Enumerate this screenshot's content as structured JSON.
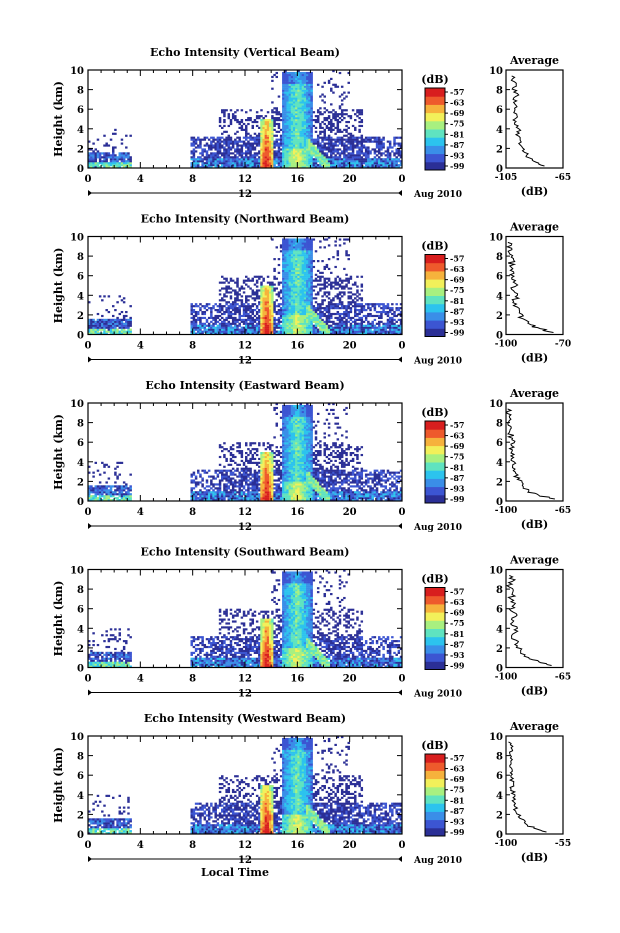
{
  "figure": {
    "xlabel": "Local Time",
    "date_label": "Aug 2010",
    "colorbar_unit": "(dB)",
    "avg_title": "Average",
    "avg_xlabel": "(dB)"
  },
  "colormap": [
    "#2b2f96",
    "#3c55d2",
    "#3a8ee8",
    "#2cc3ee",
    "#5fe3c0",
    "#a8f080",
    "#f2f05a",
    "#f6b23c",
    "#ee5a2c",
    "#d81e1e"
  ],
  "chart_data": [
    {
      "type": "heatmap",
      "title": "Echo Intensity (Vertical Beam)",
      "ylabel": "Height (km)",
      "xlim": [
        0,
        24
      ],
      "ylim": [
        0,
        10
      ],
      "x_ticks": [
        "0",
        "4",
        "8",
        "12",
        "16",
        "20",
        "0"
      ],
      "x_tick_values": [
        0,
        4,
        8,
        12,
        16,
        20,
        24
      ],
      "y_ticks": [
        0,
        2,
        4,
        6,
        8,
        10
      ],
      "center_label": "12",
      "colorbar_ticks": [
        "-57",
        "-63",
        "-69",
        "-75",
        "-81",
        "-87",
        "-93",
        "-99"
      ],
      "average": {
        "xlim": [
          -105,
          -65
        ],
        "x_ticks": [
          "-105",
          "-65"
        ],
        "profile": [
          [
            -78,
            0.2
          ],
          [
            -84,
            0.6
          ],
          [
            -88,
            1.0
          ],
          [
            -92,
            1.6
          ],
          [
            -94,
            2.2
          ],
          [
            -95,
            2.8
          ],
          [
            -98,
            3.4
          ],
          [
            -96,
            4.0
          ],
          [
            -99,
            4.6
          ],
          [
            -97,
            5.2
          ],
          [
            -99,
            5.8
          ],
          [
            -98,
            6.4
          ],
          [
            -100,
            7.0
          ],
          [
            -97,
            7.6
          ],
          [
            -100,
            8.2
          ],
          [
            -99,
            8.8
          ],
          [
            -101,
            9.4
          ]
        ]
      }
    },
    {
      "type": "heatmap",
      "title": "Echo Intensity (Northward Beam)",
      "ylabel": "Height (km)",
      "xlim": [
        0,
        24
      ],
      "ylim": [
        0,
        10
      ],
      "x_ticks": [
        "0",
        "4",
        "8",
        "12",
        "16",
        "20",
        "0"
      ],
      "x_tick_values": [
        0,
        4,
        8,
        12,
        16,
        20,
        24
      ],
      "y_ticks": [
        0,
        2,
        4,
        6,
        8,
        10
      ],
      "center_label": "12",
      "colorbar_ticks": [
        "-57",
        "-63",
        "-69",
        "-75",
        "-81",
        "-87",
        "-93",
        "-99"
      ],
      "average": {
        "xlim": [
          -100,
          -70
        ],
        "x_ticks": [
          "-100",
          "-70"
        ],
        "profile": [
          [
            -75,
            0.2
          ],
          [
            -82,
            0.6
          ],
          [
            -87,
            1.0
          ],
          [
            -91,
            1.6
          ],
          [
            -93,
            2.2
          ],
          [
            -94,
            2.8
          ],
          [
            -96,
            3.4
          ],
          [
            -94,
            4.0
          ],
          [
            -97,
            4.6
          ],
          [
            -95,
            5.2
          ],
          [
            -97,
            5.8
          ],
          [
            -96,
            6.4
          ],
          [
            -98,
            7.0
          ],
          [
            -96,
            7.6
          ],
          [
            -98,
            8.2
          ],
          [
            -97,
            8.8
          ],
          [
            -99,
            9.4
          ]
        ]
      }
    },
    {
      "type": "heatmap",
      "title": "Echo Intensity (Eastward Beam)",
      "ylabel": "Height (km)",
      "xlim": [
        0,
        24
      ],
      "ylim": [
        0,
        10
      ],
      "x_ticks": [
        "0",
        "4",
        "8",
        "12",
        "16",
        "20",
        "0"
      ],
      "x_tick_values": [
        0,
        4,
        8,
        12,
        16,
        20,
        24
      ],
      "y_ticks": [
        0,
        2,
        4,
        6,
        8,
        10
      ],
      "center_label": "12",
      "colorbar_ticks": [
        "-57",
        "-63",
        "-69",
        "-75",
        "-81",
        "-87",
        "-93",
        "-99"
      ],
      "average": {
        "xlim": [
          -100,
          -65
        ],
        "x_ticks": [
          "-100",
          "-65"
        ],
        "profile": [
          [
            -70,
            0.2
          ],
          [
            -80,
            0.6
          ],
          [
            -86,
            1.0
          ],
          [
            -90,
            1.6
          ],
          [
            -93,
            2.2
          ],
          [
            -94,
            2.8
          ],
          [
            -96,
            3.4
          ],
          [
            -95,
            4.0
          ],
          [
            -97,
            4.6
          ],
          [
            -96,
            5.2
          ],
          [
            -97,
            5.8
          ],
          [
            -96,
            6.4
          ],
          [
            -98,
            7.0
          ],
          [
            -97,
            7.6
          ],
          [
            -98,
            8.2
          ],
          [
            -97,
            8.8
          ],
          [
            -99,
            9.4
          ]
        ]
      }
    },
    {
      "type": "heatmap",
      "title": "Echo Intensity (Southward Beam)",
      "ylabel": "Height (km)",
      "xlim": [
        0,
        24
      ],
      "ylim": [
        0,
        10
      ],
      "x_ticks": [
        "0",
        "4",
        "8",
        "12",
        "16",
        "20",
        "0"
      ],
      "x_tick_values": [
        0,
        4,
        8,
        12,
        16,
        20,
        24
      ],
      "y_ticks": [
        0,
        2,
        4,
        6,
        8,
        10
      ],
      "center_label": "12",
      "colorbar_ticks": [
        "-57",
        "-63",
        "-69",
        "-75",
        "-81",
        "-87",
        "-93",
        "-99"
      ],
      "average": {
        "xlim": [
          -100,
          -65
        ],
        "x_ticks": [
          "-100",
          "-65"
        ],
        "profile": [
          [
            -72,
            0.2
          ],
          [
            -80,
            0.6
          ],
          [
            -86,
            1.0
          ],
          [
            -91,
            1.6
          ],
          [
            -93,
            2.2
          ],
          [
            -94,
            2.8
          ],
          [
            -96,
            3.4
          ],
          [
            -93,
            4.0
          ],
          [
            -96,
            4.6
          ],
          [
            -94,
            5.2
          ],
          [
            -97,
            5.8
          ],
          [
            -95,
            6.4
          ],
          [
            -97,
            7.0
          ],
          [
            -96,
            7.6
          ],
          [
            -98,
            8.2
          ],
          [
            -96,
            8.8
          ],
          [
            -98,
            9.4
          ]
        ]
      }
    },
    {
      "type": "heatmap",
      "title": "Echo Intensity (Westward Beam)",
      "ylabel": "Height (km)",
      "xlim": [
        0,
        24
      ],
      "ylim": [
        0,
        10
      ],
      "x_ticks": [
        "0",
        "4",
        "8",
        "12",
        "16",
        "20",
        "0"
      ],
      "x_tick_values": [
        0,
        4,
        8,
        12,
        16,
        20,
        24
      ],
      "y_ticks": [
        0,
        2,
        4,
        6,
        8,
        10
      ],
      "center_label": "12",
      "colorbar_ticks": [
        "-57",
        "-63",
        "-69",
        "-75",
        "-81",
        "-87",
        "-93",
        "-99"
      ],
      "average": {
        "xlim": [
          -100,
          -55
        ],
        "x_ticks": [
          "-100",
          "-55"
        ],
        "profile": [
          [
            -68,
            0.2
          ],
          [
            -78,
            0.6
          ],
          [
            -84,
            1.0
          ],
          [
            -89,
            1.6
          ],
          [
            -92,
            2.2
          ],
          [
            -93,
            2.8
          ],
          [
            -95,
            3.4
          ],
          [
            -93,
            4.0
          ],
          [
            -96,
            4.6
          ],
          [
            -94,
            5.2
          ],
          [
            -96,
            5.8
          ],
          [
            -95,
            6.4
          ],
          [
            -97,
            7.0
          ],
          [
            -95,
            7.6
          ],
          [
            -97,
            8.2
          ],
          [
            -96,
            8.8
          ],
          [
            -98,
            9.4
          ]
        ]
      }
    }
  ]
}
